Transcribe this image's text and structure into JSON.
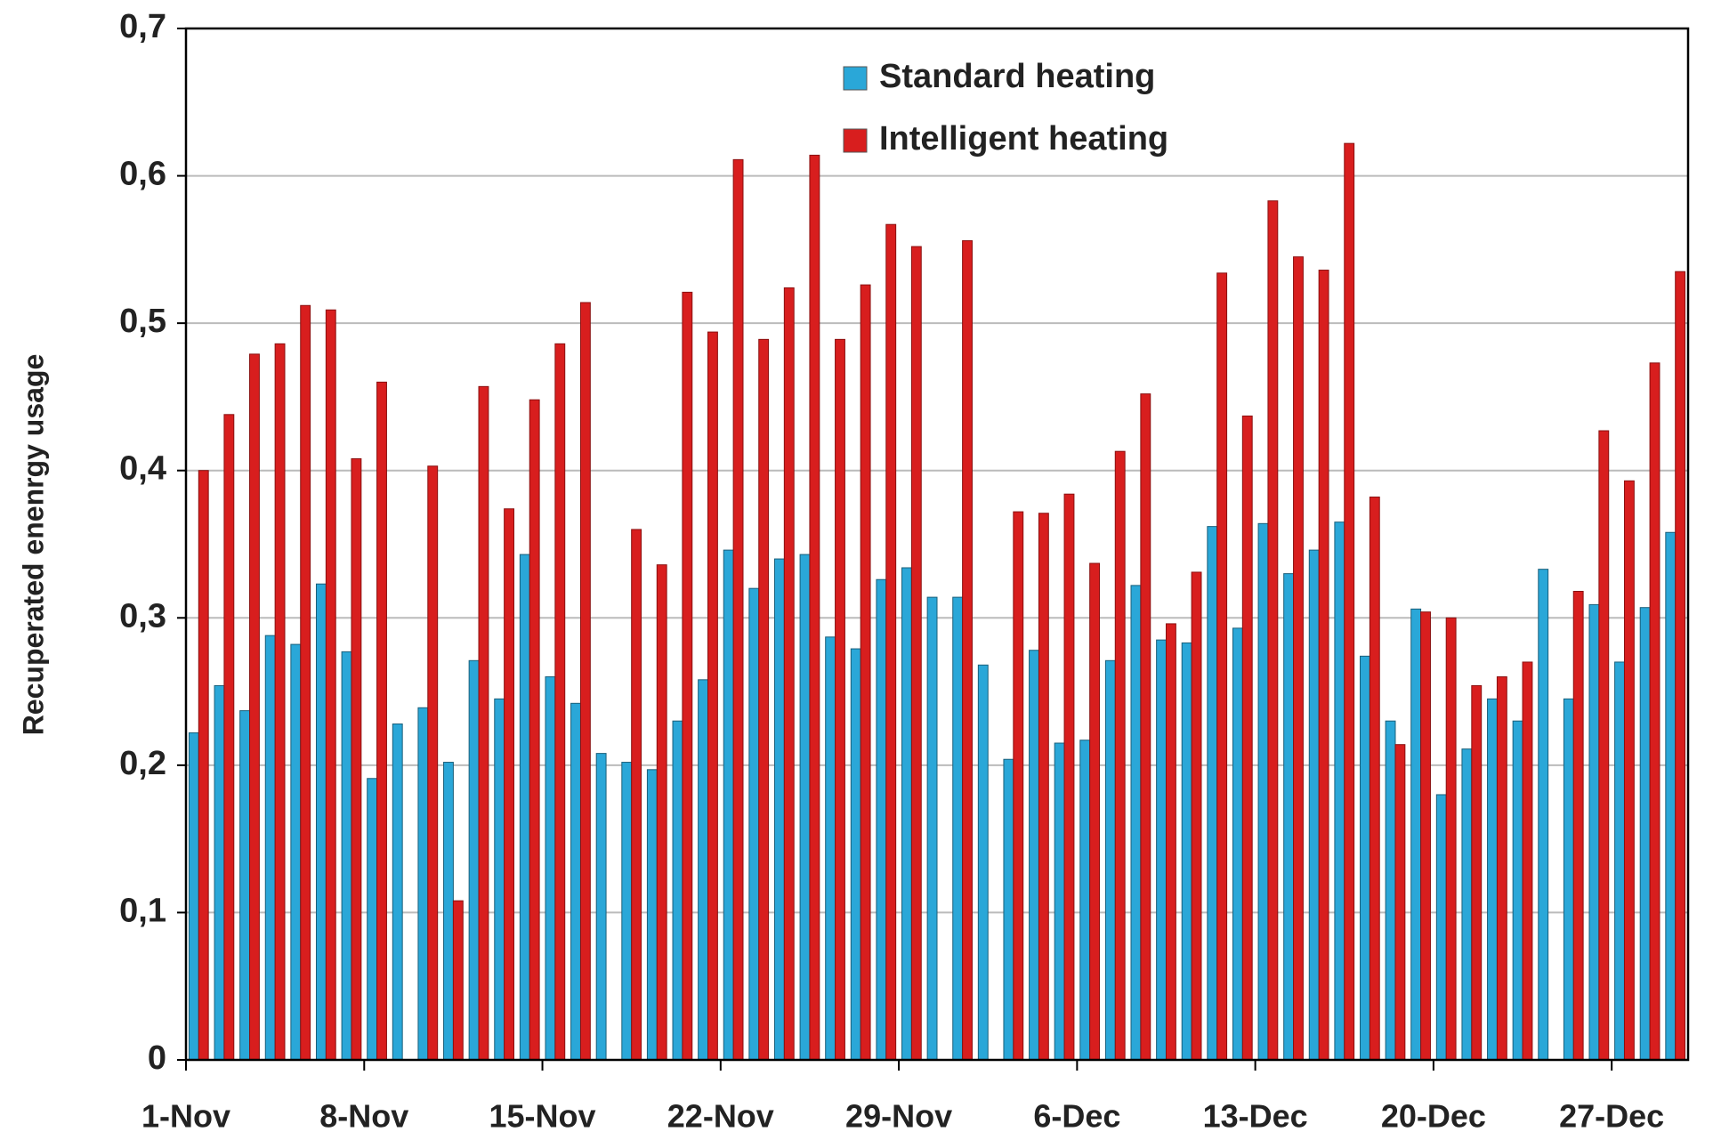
{
  "chart_data": {
    "type": "bar",
    "y_label": "Recuperated enenrgy usage",
    "categories": [
      "1-Nov",
      null,
      null,
      null,
      null,
      null,
      null,
      "8-Nov",
      null,
      null,
      null,
      null,
      null,
      null,
      "15-Nov",
      null,
      null,
      null,
      null,
      null,
      null,
      "22-Nov",
      null,
      null,
      null,
      null,
      null,
      null,
      "29-Nov",
      null,
      null,
      null,
      null,
      null,
      null,
      "6-Dec",
      null,
      null,
      null,
      null,
      null,
      null,
      "13-Dec",
      null,
      null,
      null,
      null,
      null,
      null,
      "20-Dec",
      null,
      null,
      null,
      null,
      null,
      null,
      "27-Dec",
      null,
      null
    ],
    "series": [
      {
        "name": "Standard heating",
        "color": "#2aa7d8",
        "values": [
          0.222,
          0.254,
          0.237,
          0.288,
          0.282,
          0.323,
          0.277,
          0.191,
          0.228,
          0.239,
          0.202,
          0.271,
          0.245,
          0.343,
          0.26,
          0.242,
          0.208,
          0.202,
          0.197,
          0.23,
          0.258,
          0.346,
          0.32,
          0.34,
          0.343,
          0.287,
          0.279,
          0.326,
          0.334,
          0.314,
          0.314,
          0.268,
          0.204,
          0.278,
          0.215,
          0.217,
          0.271,
          0.322,
          0.285,
          0.283,
          0.362,
          0.293,
          0.364,
          0.33,
          0.346,
          0.365,
          0.274,
          0.23,
          0.306,
          0.18,
          0.211,
          0.245,
          0.23,
          0.333,
          0.245,
          0.309,
          0.27,
          0.307,
          0.358
        ]
      },
      {
        "name": "Intelligent heating",
        "color": "#d81e1e",
        "values": [
          0.4,
          0.438,
          0.479,
          0.486,
          0.512,
          0.509,
          0.408,
          0.46,
          null,
          0.403,
          0.108,
          0.457,
          0.374,
          0.448,
          0.486,
          0.514,
          null,
          0.36,
          0.336,
          0.521,
          0.494,
          0.611,
          0.489,
          0.524,
          0.614,
          0.489,
          0.526,
          0.567,
          0.552,
          null,
          0.556,
          null,
          0.372,
          0.371,
          0.384,
          0.337,
          0.413,
          0.452,
          0.296,
          0.331,
          0.534,
          0.437,
          0.583,
          0.545,
          0.536,
          0.622,
          0.382,
          0.214,
          0.304,
          0.3,
          0.254,
          0.26,
          0.27,
          null,
          0.318,
          0.427,
          0.393,
          0.473,
          0.535
        ]
      }
    ],
    "ylim": [
      0,
      0.7
    ],
    "yticks": [
      0,
      {
        "value": 0.1,
        "label": "0,1"
      },
      {
        "value": 0.2,
        "label": "0,2"
      },
      {
        "value": 0.3,
        "label": "0,3"
      },
      {
        "value": 0.4,
        "label": "0,4"
      },
      {
        "value": 0.5,
        "label": "0,5"
      },
      {
        "value": 0.6,
        "label": "0,6"
      },
      {
        "value": 0.7,
        "label": "0,7"
      }
    ],
    "grid": true,
    "legend": "top"
  }
}
